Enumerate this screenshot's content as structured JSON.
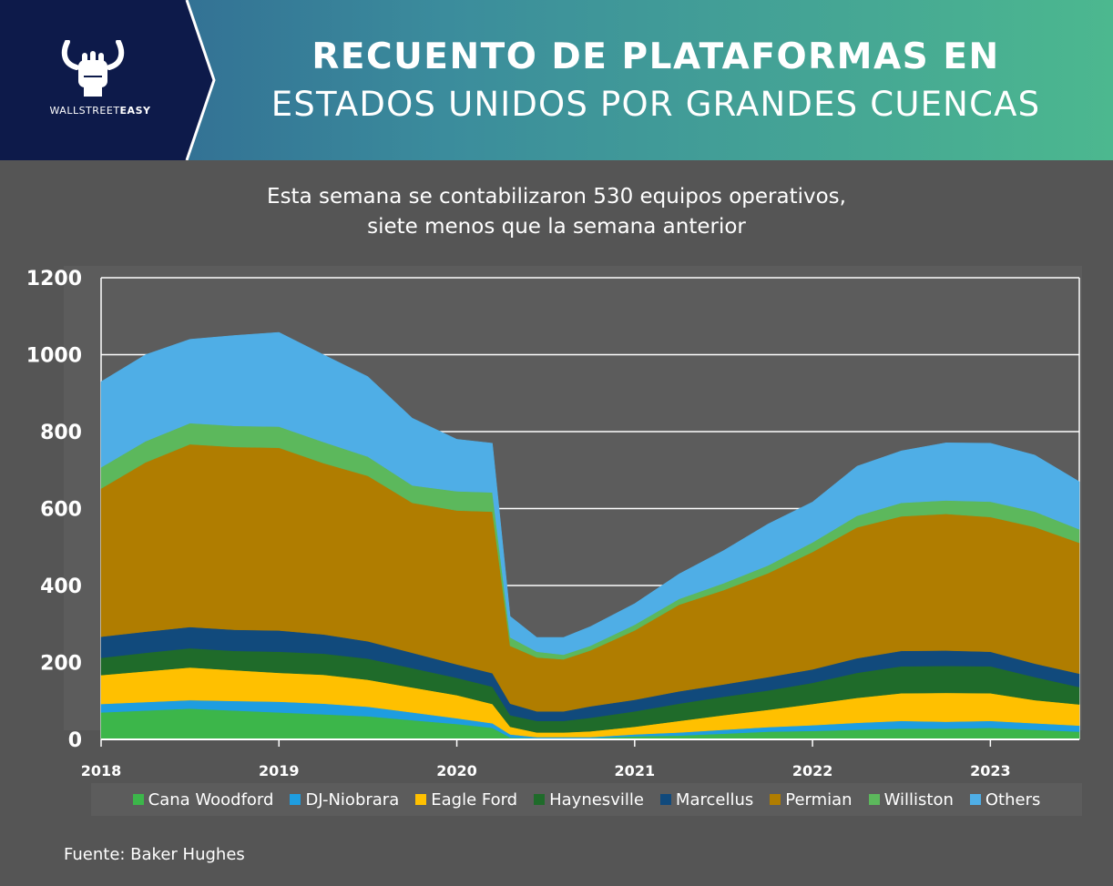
{
  "header": {
    "brand": {
      "prefix": "WALLSTREET",
      "suffix": "EASY"
    },
    "title_line1": "RECUENTO DE PLATAFORMAS EN",
    "title_line2": "ESTADOS UNIDOS POR GRANDES CUENCAS",
    "colors": {
      "brand_panel": "#0d1a4a",
      "gradient_start": "#2d5f8f",
      "gradient_end": "#4cb88f"
    }
  },
  "subtitle": {
    "line1": "Esta semana se contabilizaron 530 equipos operativos,",
    "line2": "siete menos que la semana anterior"
  },
  "source": "Fuente: Baker Hughes",
  "chart_data": {
    "type": "area",
    "stacked": true,
    "x": [
      2018.0,
      2018.25,
      2018.5,
      2018.75,
      2019.0,
      2019.25,
      2019.5,
      2019.75,
      2020.0,
      2020.2,
      2020.3,
      2020.45,
      2020.6,
      2020.75,
      2021.0,
      2021.25,
      2021.5,
      2021.75,
      2022.0,
      2022.25,
      2022.5,
      2022.75,
      2023.0,
      2023.25,
      2023.5
    ],
    "xlim": [
      2018.0,
      2023.5
    ],
    "x_ticks": [
      "2018",
      "2019",
      "2020",
      "2021",
      "2022",
      "2023"
    ],
    "ylim": [
      0,
      1200
    ],
    "y_ticks": [
      "0",
      "200",
      "400",
      "600",
      "800",
      "1000",
      "1200"
    ],
    "grid": true,
    "legend_position": "bottom",
    "series": [
      {
        "name": "Cana Woodford",
        "color": "#3cb64a",
        "values": [
          70,
          75,
          80,
          75,
          70,
          65,
          60,
          50,
          40,
          30,
          5,
          3,
          3,
          3,
          8,
          10,
          15,
          20,
          22,
          25,
          28,
          28,
          30,
          25,
          20
        ]
      },
      {
        "name": "DJ-Niobrara",
        "color": "#1e9de0",
        "values": [
          22,
          22,
          22,
          25,
          28,
          28,
          25,
          20,
          15,
          12,
          8,
          3,
          3,
          3,
          5,
          8,
          10,
          12,
          15,
          18,
          20,
          18,
          18,
          17,
          16
        ]
      },
      {
        "name": "Eagle Ford",
        "color": "#ffc000",
        "values": [
          75,
          80,
          85,
          80,
          75,
          75,
          70,
          65,
          60,
          50,
          20,
          12,
          12,
          15,
          20,
          30,
          38,
          45,
          55,
          65,
          72,
          75,
          72,
          60,
          55
        ]
      },
      {
        "name": "Haynesville",
        "color": "#1f6b2a",
        "values": [
          45,
          48,
          50,
          50,
          55,
          55,
          55,
          50,
          45,
          45,
          30,
          30,
          30,
          35,
          40,
          45,
          48,
          50,
          55,
          65,
          70,
          70,
          70,
          60,
          45
        ]
      },
      {
        "name": "Marcellus",
        "color": "#114a7c",
        "values": [
          55,
          55,
          55,
          55,
          55,
          50,
          45,
          40,
          35,
          35,
          30,
          25,
          25,
          30,
          30,
          32,
          32,
          35,
          35,
          38,
          40,
          40,
          38,
          35,
          35
        ]
      },
      {
        "name": "Permian",
        "color": "#b07d00",
        "values": [
          385,
          440,
          475,
          475,
          475,
          445,
          430,
          390,
          400,
          420,
          150,
          140,
          135,
          145,
          180,
          225,
          245,
          270,
          305,
          340,
          350,
          355,
          350,
          355,
          340
        ]
      },
      {
        "name": "Williston",
        "color": "#5cb85c",
        "values": [
          55,
          55,
          55,
          55,
          55,
          55,
          50,
          45,
          50,
          50,
          22,
          15,
          12,
          12,
          15,
          15,
          18,
          20,
          25,
          30,
          35,
          35,
          40,
          40,
          35
        ]
      },
      {
        "name": "Others",
        "color": "#4faee6",
        "values": [
          223,
          225,
          218,
          235,
          245,
          227,
          208,
          175,
          135,
          128,
          55,
          37,
          45,
          50,
          55,
          65,
          85,
          108,
          105,
          129,
          135,
          150,
          152,
          147,
          124
        ]
      }
    ]
  }
}
